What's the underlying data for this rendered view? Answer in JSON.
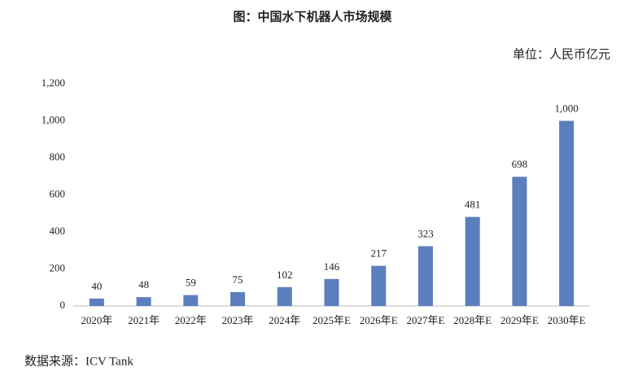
{
  "chart_data": {
    "type": "bar",
    "title": "图：中国水下机器人市场规模",
    "unit_label": "单位：人民币亿元",
    "source": "数据来源：ICV Tank",
    "categories": [
      "2020年",
      "2021年",
      "2022年",
      "2023年",
      "2024年",
      "2025年E",
      "2026年E",
      "2027年E",
      "2028年E",
      "2029年E",
      "2030年E"
    ],
    "values": [
      40,
      48,
      59,
      75,
      102,
      146,
      217,
      323,
      481,
      698,
      1000
    ],
    "value_labels": [
      "40",
      "48",
      "59",
      "75",
      "102",
      "146",
      "217",
      "323",
      "481",
      "698",
      "1,000"
    ],
    "color": "#5b7fbe",
    "ylim": [
      0,
      1200
    ],
    "yticks": [
      0,
      200,
      400,
      600,
      800,
      {
        "value": 1000,
        "label": "1,000"
      },
      {
        "value": 1200,
        "label": "1,200"
      }
    ],
    "grid": false
  }
}
